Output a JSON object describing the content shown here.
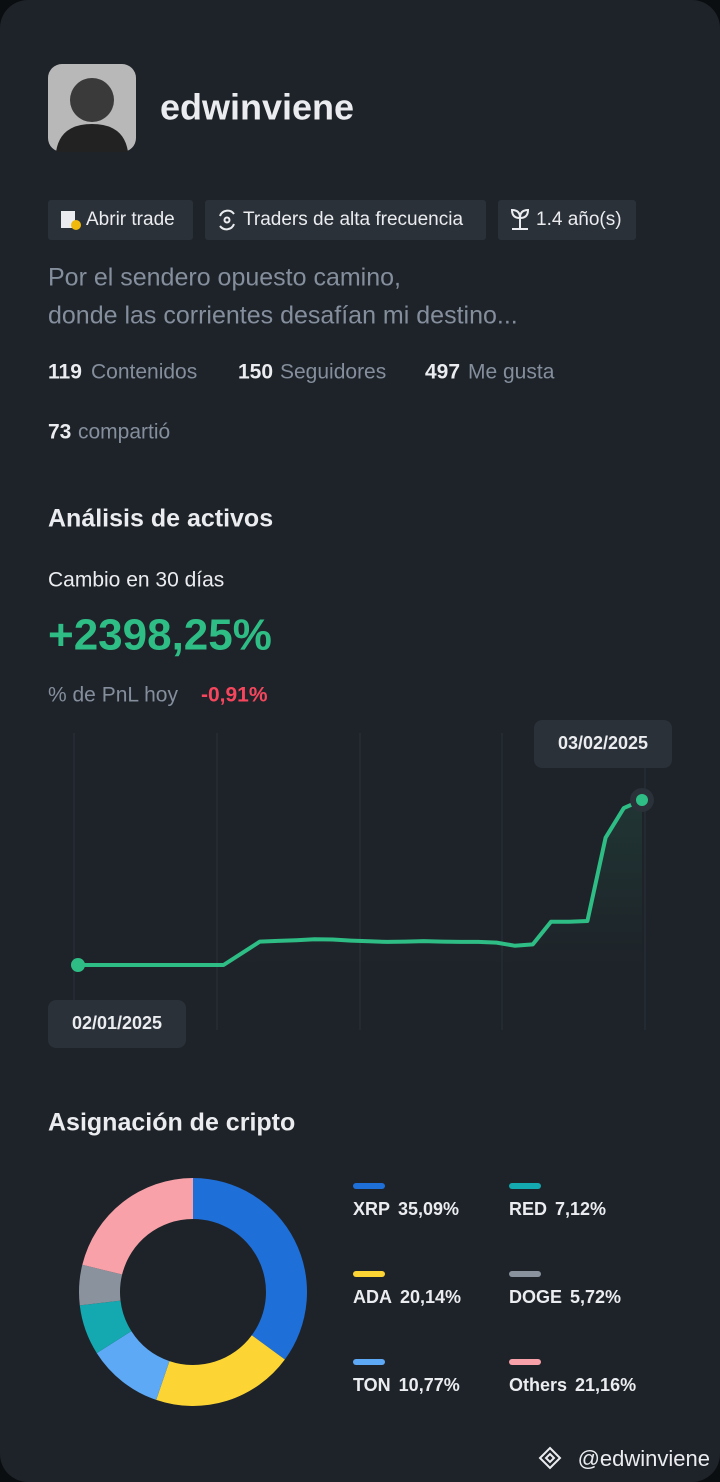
{
  "profile": {
    "username": "edwinviene",
    "tags": [
      "Abrir trade",
      "Traders de alta frecuencia",
      "1.4 año(s)"
    ],
    "bio": [
      "Por el sendero opuesto camino,",
      "donde las corrientes desafían mi destino..."
    ],
    "stats": [
      {
        "value": 119,
        "label": "Contenidos"
      },
      {
        "value": 150,
        "label": "Seguidores"
      },
      {
        "value": 497,
        "label": "Me gusta"
      },
      {
        "value": 73,
        "label": "compartió"
      }
    ]
  },
  "asset_analysis": {
    "title": "Análisis de activos",
    "change_label": "Cambio en 30 días",
    "change": "+2398,25%",
    "pnl_label": "% de PnL hoy",
    "pnl_today": "-0,91%"
  },
  "chart_data": [
    {
      "type": "line",
      "start_date": "02/01/2025",
      "end_date": "03/02/2025",
      "color": "#2ebd85",
      "values": [
        0,
        0,
        0,
        0,
        0,
        0,
        0,
        0,
        0,
        170,
        340,
        350,
        360,
        375,
        370,
        355,
        345,
        335,
        340,
        348,
        340,
        335,
        335,
        325,
        280,
        300,
        630,
        630,
        640,
        1850,
        2280,
        2398
      ]
    },
    {
      "type": "pie",
      "title": "Asignación de cripto",
      "categories": [
        "XRP",
        "ADA",
        "TON",
        "RED",
        "DOGE",
        "Others"
      ],
      "values": [
        35.09,
        20.14,
        10.77,
        7.12,
        5.72,
        21.16
      ],
      "value_labels": [
        "35,09%",
        "20,14%",
        "10,77%",
        "7,12%",
        "5,72%",
        "21,16%"
      ],
      "colors": [
        "#1f6fd8",
        "#fcd535",
        "#5ea9f5",
        "#14a8b0",
        "#8a929e",
        "#f8a1a9"
      ]
    }
  ],
  "watermark": "@edwinviene"
}
